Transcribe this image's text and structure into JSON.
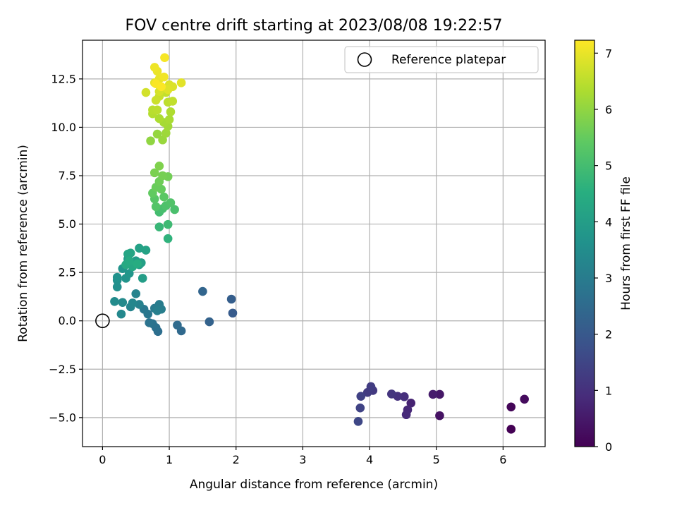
{
  "chart_data": {
    "type": "scatter",
    "title": "FOV centre drift starting at 2023/08/08 19:22:57",
    "xlabel": "Angular distance from reference (arcmin)",
    "ylabel": "Rotation from reference (arcmin)",
    "colorbar_label": "Hours from first FF file",
    "xlim": [
      -0.3,
      6.63
    ],
    "ylim": [
      -6.5,
      14.5
    ],
    "clim": [
      0,
      7.23
    ],
    "x_ticks": [
      0,
      1,
      2,
      3,
      4,
      5,
      6
    ],
    "y_ticks": [
      -5.0,
      -2.5,
      0.0,
      2.5,
      5.0,
      7.5,
      10.0,
      12.5
    ],
    "x_tick_labels": [
      "0",
      "1",
      "2",
      "3",
      "4",
      "5",
      "6"
    ],
    "y_tick_labels": [
      "−5.0",
      "−2.5",
      "0.0",
      "2.5",
      "5.0",
      "7.5",
      "10.0",
      "12.5"
    ],
    "colorbar_ticks": [
      0,
      1,
      2,
      3,
      4,
      5,
      6,
      7
    ],
    "colorbar_tick_labels": [
      "0",
      "1",
      "2",
      "3",
      "4",
      "5",
      "6",
      "7"
    ],
    "colormap": "viridis",
    "grid": true,
    "legend_position": "top-right",
    "legend": [
      {
        "label": "Reference platepar",
        "marker": "open-circle",
        "color": "#000000"
      }
    ],
    "reference_point": {
      "x": 0.0,
      "y": 0.0
    },
    "points": [
      [
        6.12,
        -5.6,
        0.0
      ],
      [
        6.12,
        -4.45,
        0.1
      ],
      [
        6.32,
        -4.05,
        0.2
      ],
      [
        5.05,
        -4.9,
        0.35
      ],
      [
        5.05,
        -3.8,
        0.45
      ],
      [
        4.95,
        -3.8,
        0.55
      ],
      [
        4.62,
        -4.25,
        0.7
      ],
      [
        4.57,
        -4.6,
        0.8
      ],
      [
        4.55,
        -4.85,
        0.85
      ],
      [
        4.52,
        -3.92,
        0.95
      ],
      [
        4.42,
        -3.9,
        1.0
      ],
      [
        4.33,
        -3.78,
        1.1
      ],
      [
        4.05,
        -3.6,
        1.2
      ],
      [
        3.97,
        -3.7,
        1.25
      ],
      [
        4.02,
        -3.4,
        1.3
      ],
      [
        3.87,
        -3.9,
        1.4
      ],
      [
        3.86,
        -4.5,
        1.45
      ],
      [
        3.83,
        -5.2,
        1.55
      ],
      [
        1.95,
        0.4,
        2.05
      ],
      [
        1.93,
        1.12,
        2.15
      ],
      [
        1.6,
        -0.05,
        2.25
      ],
      [
        1.5,
        1.52,
        2.35
      ],
      [
        1.18,
        -0.52,
        2.45
      ],
      [
        1.12,
        -0.22,
        2.5
      ],
      [
        0.83,
        -0.55,
        2.6
      ],
      [
        0.8,
        -0.35,
        2.65
      ],
      [
        0.75,
        -0.15,
        2.7
      ],
      [
        0.7,
        -0.1,
        2.75
      ],
      [
        0.68,
        0.35,
        2.85
      ],
      [
        0.62,
        0.6,
        2.9
      ],
      [
        0.78,
        0.65,
        2.95
      ],
      [
        0.85,
        0.85,
        3.0
      ],
      [
        0.88,
        0.6,
        3.05
      ],
      [
        0.82,
        0.52,
        3.1
      ],
      [
        0.55,
        0.85,
        3.15
      ],
      [
        0.5,
        1.4,
        3.2
      ],
      [
        0.42,
        0.72,
        3.25
      ],
      [
        0.45,
        0.92,
        3.3
      ],
      [
        0.28,
        0.35,
        3.35
      ],
      [
        0.3,
        0.95,
        3.4
      ],
      [
        0.18,
        1.0,
        3.45
      ],
      [
        0.22,
        1.75,
        3.55
      ],
      [
        0.22,
        2.1,
        3.6
      ],
      [
        0.22,
        2.25,
        3.65
      ],
      [
        0.3,
        2.7,
        3.7
      ],
      [
        0.35,
        2.2,
        3.72
      ],
      [
        0.4,
        2.45,
        3.78
      ],
      [
        0.45,
        2.95,
        3.82
      ],
      [
        0.38,
        3.2,
        3.88
      ],
      [
        0.5,
        3.1,
        3.92
      ],
      [
        0.55,
        2.9,
        3.95
      ],
      [
        0.6,
        2.2,
        4.0
      ],
      [
        0.58,
        3.0,
        4.05
      ],
      [
        0.55,
        3.75,
        4.1
      ],
      [
        0.65,
        3.65,
        4.15
      ],
      [
        0.42,
        3.5,
        4.2
      ],
      [
        0.38,
        3.45,
        4.25
      ],
      [
        0.45,
        2.8,
        4.3
      ],
      [
        0.35,
        2.9,
        4.35
      ],
      [
        0.4,
        3.1,
        4.4
      ],
      [
        0.52,
        2.95,
        4.45
      ],
      [
        0.98,
        4.25,
        4.65
      ],
      [
        0.85,
        4.85,
        4.8
      ],
      [
        0.98,
        4.98,
        4.9
      ],
      [
        0.85,
        5.62,
        5.0
      ],
      [
        0.9,
        5.8,
        5.05
      ],
      [
        1.08,
        5.75,
        5.1
      ],
      [
        0.95,
        5.95,
        5.15
      ],
      [
        1.02,
        6.1,
        5.2
      ],
      [
        0.8,
        5.9,
        5.25
      ],
      [
        0.78,
        6.3,
        5.3
      ],
      [
        0.92,
        6.4,
        5.35
      ],
      [
        0.75,
        6.6,
        5.45
      ],
      [
        0.88,
        6.8,
        5.5
      ],
      [
        0.8,
        6.9,
        5.55
      ],
      [
        0.85,
        7.2,
        5.6
      ],
      [
        0.98,
        7.45,
        5.65
      ],
      [
        0.9,
        7.5,
        5.7
      ],
      [
        0.78,
        7.65,
        5.75
      ],
      [
        0.85,
        8.0,
        5.8
      ],
      [
        0.72,
        9.3,
        6.0
      ],
      [
        0.82,
        9.65,
        6.05
      ],
      [
        0.9,
        9.35,
        6.1
      ],
      [
        0.95,
        9.7,
        6.15
      ],
      [
        0.98,
        10.05,
        6.2
      ],
      [
        0.92,
        10.25,
        6.25
      ],
      [
        1.0,
        10.4,
        6.28
      ],
      [
        0.85,
        10.45,
        6.32
      ],
      [
        1.02,
        10.8,
        6.35
      ],
      [
        0.75,
        10.7,
        6.4
      ],
      [
        0.75,
        10.9,
        6.45
      ],
      [
        0.82,
        10.9,
        6.48
      ],
      [
        0.98,
        11.3,
        6.52
      ],
      [
        1.05,
        11.35,
        6.55
      ],
      [
        0.95,
        11.8,
        6.58
      ],
      [
        0.85,
        11.6,
        6.62
      ],
      [
        0.8,
        11.4,
        6.66
      ],
      [
        0.9,
        12.0,
        6.7
      ],
      [
        0.65,
        11.8,
        6.74
      ],
      [
        0.85,
        11.85,
        6.78
      ],
      [
        1.0,
        12.2,
        6.82
      ],
      [
        1.05,
        12.1,
        6.85
      ],
      [
        0.98,
        11.95,
        6.88
      ],
      [
        1.18,
        12.3,
        6.92
      ],
      [
        0.78,
        12.3,
        6.95
      ],
      [
        0.85,
        12.5,
        6.98
      ],
      [
        0.82,
        12.9,
        7.02
      ],
      [
        0.78,
        13.1,
        7.06
      ],
      [
        0.92,
        12.6,
        7.1
      ],
      [
        0.93,
        13.6,
        7.15
      ],
      [
        0.8,
        12.25,
        7.18
      ],
      [
        0.88,
        12.1,
        7.21
      ]
    ]
  }
}
